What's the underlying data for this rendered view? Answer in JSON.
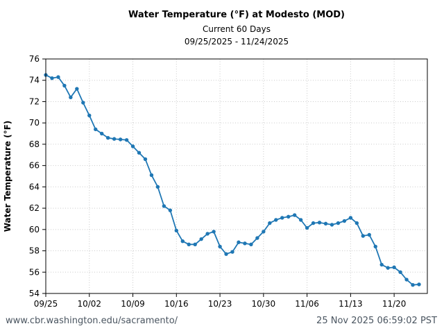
{
  "header": {
    "title": "Water Temperature (°F) at Modesto (MOD)",
    "subtitle": "Current 60 Days",
    "date_range": "09/25/2025 - 11/24/2025"
  },
  "footer": {
    "url": "www.cbr.washington.edu/sacramento/",
    "timestamp": "25 Nov 2025 06:59:02 PST"
  },
  "chart_data": {
    "type": "line",
    "title": "Water Temperature (°F) at Modesto (MOD)",
    "subtitle": "Current 60 Days",
    "date_range": "09/25/2025 - 11/24/2025",
    "xlabel": "",
    "ylabel": "Water Temperature (°F)",
    "ylim": [
      54,
      76
    ],
    "y_ticks": [
      54,
      56,
      58,
      60,
      62,
      64,
      66,
      68,
      70,
      72,
      74,
      76
    ],
    "x_tick_labels": [
      "09/25",
      "10/02",
      "10/09",
      "10/16",
      "10/23",
      "10/30",
      "11/06",
      "11/13",
      "11/20"
    ],
    "x_tick_indices": [
      0,
      7,
      14,
      21,
      28,
      35,
      42,
      49,
      56
    ],
    "grid": true,
    "legend": false,
    "line_color": "#1f77b4",
    "grid_color": "#c9c9c9",
    "dates": [
      "09/25",
      "09/26",
      "09/27",
      "09/28",
      "09/29",
      "09/30",
      "10/01",
      "10/02",
      "10/03",
      "10/04",
      "10/05",
      "10/06",
      "10/07",
      "10/08",
      "10/09",
      "10/10",
      "10/11",
      "10/12",
      "10/13",
      "10/14",
      "10/15",
      "10/16",
      "10/17",
      "10/18",
      "10/19",
      "10/20",
      "10/21",
      "10/22",
      "10/23",
      "10/24",
      "10/25",
      "10/26",
      "10/27",
      "10/28",
      "10/29",
      "10/30",
      "10/31",
      "11/01",
      "11/02",
      "11/03",
      "11/04",
      "11/05",
      "11/06",
      "11/07",
      "11/08",
      "11/09",
      "11/10",
      "11/11",
      "11/12",
      "11/13",
      "11/14",
      "11/15",
      "11/16",
      "11/17",
      "11/18",
      "11/19",
      "11/20",
      "11/21",
      "11/22",
      "11/23",
      "11/24"
    ],
    "values": [
      74.5,
      74.2,
      74.3,
      73.5,
      72.4,
      73.2,
      71.9,
      70.7,
      69.4,
      69.0,
      68.6,
      68.5,
      68.45,
      68.4,
      67.8,
      67.2,
      66.6,
      65.1,
      64.0,
      62.2,
      61.8,
      59.9,
      58.9,
      58.6,
      58.6,
      59.1,
      59.6,
      59.8,
      58.4,
      57.7,
      57.9,
      58.8,
      58.7,
      58.6,
      59.2,
      59.8,
      60.6,
      60.9,
      61.1,
      61.2,
      61.35,
      60.9,
      60.15,
      60.6,
      60.65,
      60.55,
      60.45,
      60.6,
      60.8,
      61.1,
      60.6,
      59.4,
      59.5,
      58.4,
      56.7,
      56.4,
      56.45,
      56.0,
      55.3,
      54.8,
      54.85
    ]
  }
}
